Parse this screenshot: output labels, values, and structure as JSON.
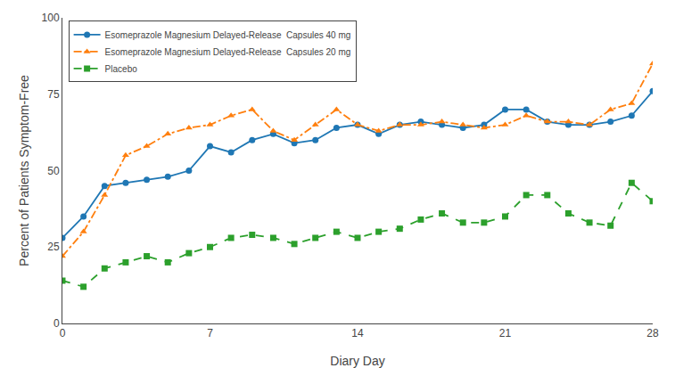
{
  "chart_data": {
    "type": "line",
    "xlabel": "Diary Day",
    "ylabel": "Percent of Patients Symptom-Free",
    "x": [
      0,
      1,
      2,
      3,
      4,
      5,
      6,
      7,
      8,
      9,
      10,
      11,
      12,
      13,
      14,
      15,
      16,
      17,
      18,
      19,
      20,
      21,
      22,
      23,
      24,
      25,
      26,
      27,
      28
    ],
    "xlim": [
      0,
      28
    ],
    "xticks": [
      0,
      7,
      14,
      21,
      28
    ],
    "ylim": [
      0,
      100
    ],
    "yticks": [
      0,
      25,
      50,
      75,
      100
    ],
    "grid": false,
    "legend": "upper left",
    "series": [
      {
        "name": "Esomeprazole Magnesium Delayed-Release  Capsules 40 mg",
        "marker": "circle",
        "line_style": "solid",
        "values": [
          28,
          35,
          45,
          46,
          47,
          48,
          50,
          58,
          56,
          60,
          62,
          59,
          60,
          64,
          65,
          62,
          65,
          66,
          65,
          64,
          65,
          70,
          70,
          66,
          65,
          65,
          66,
          68,
          76
        ]
      },
      {
        "name": "Esomeprazole Magnesium Delayed-Release  Capsules 20 mg",
        "marker": "triangle",
        "line_style": "dashdot",
        "values": [
          22,
          30,
          42,
          55,
          58,
          62,
          64,
          65,
          68,
          70,
          63,
          60,
          65,
          70,
          65,
          63,
          65,
          65,
          66,
          65,
          64,
          65,
          68,
          66,
          66,
          65,
          70,
          72,
          85
        ]
      },
      {
        "name": "Placebo",
        "marker": "square",
        "line_style": "dashed",
        "values": [
          14,
          12,
          18,
          20,
          22,
          20,
          23,
          25,
          28,
          29,
          28,
          26,
          28,
          30,
          28,
          30,
          31,
          34,
          36,
          33,
          33,
          35,
          42,
          42,
          36,
          33,
          32,
          46,
          40
        ]
      }
    ]
  }
}
